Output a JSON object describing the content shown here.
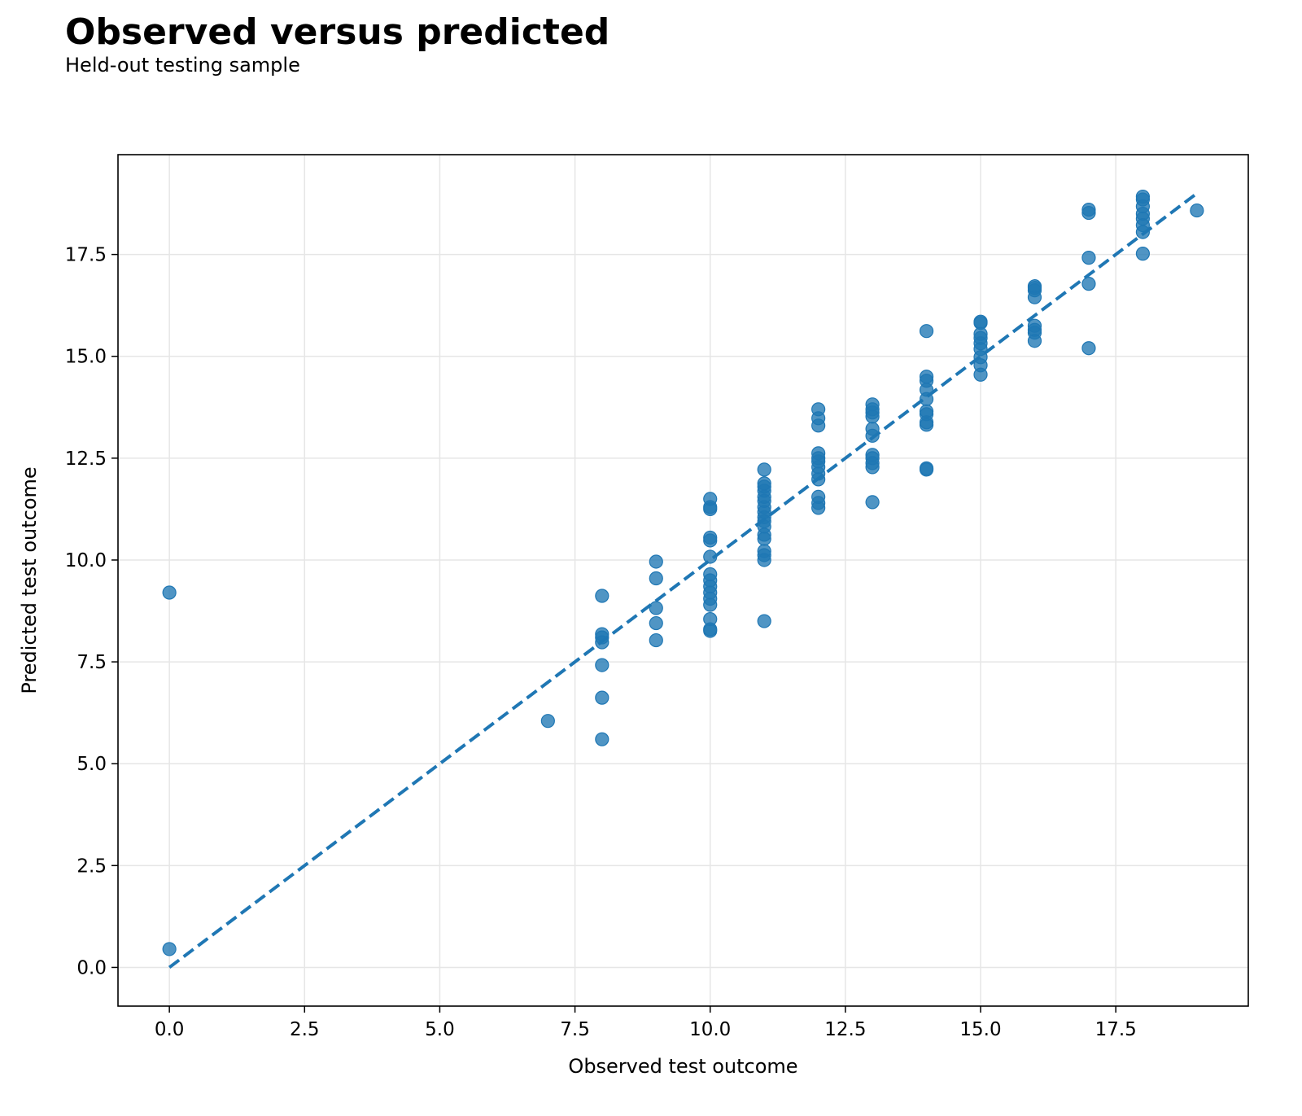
{
  "chart_data": {
    "type": "scatter",
    "title": "Observed versus predicted",
    "subtitle": "Held-out testing sample",
    "xlabel": "Observed test outcome",
    "ylabel": "Predicted test outcome",
    "xlim": [
      -0.95,
      19.95
    ],
    "ylim": [
      -0.95,
      19.95
    ],
    "xticks": [
      0.0,
      2.5,
      5.0,
      7.5,
      10.0,
      12.5,
      15.0,
      17.5
    ],
    "yticks": [
      0.0,
      2.5,
      5.0,
      7.5,
      10.0,
      12.5,
      15.0,
      17.5
    ],
    "xtick_labels": [
      "0.0",
      "2.5",
      "5.0",
      "7.5",
      "10.0",
      "12.5",
      "15.0",
      "17.5"
    ],
    "ytick_labels": [
      "0.0",
      "2.5",
      "5.0",
      "7.5",
      "10.0",
      "12.5",
      "15.0",
      "17.5"
    ],
    "grid": true,
    "point_color": "#1f77b4",
    "reference_line": {
      "x": [
        0,
        19
      ],
      "y": [
        0,
        19
      ],
      "style": "dashed",
      "color": "#1f77b4"
    },
    "points": [
      [
        0,
        9.2
      ],
      [
        0,
        0.45
      ],
      [
        7,
        6.05
      ],
      [
        8,
        9.12
      ],
      [
        8,
        8.18
      ],
      [
        8,
        8.1
      ],
      [
        8,
        7.98
      ],
      [
        8,
        7.42
      ],
      [
        8,
        6.62
      ],
      [
        8,
        5.6
      ],
      [
        9,
        9.96
      ],
      [
        9,
        9.55
      ],
      [
        9,
        8.82
      ],
      [
        9,
        8.45
      ],
      [
        9,
        8.03
      ],
      [
        10,
        11.5
      ],
      [
        10,
        11.3
      ],
      [
        10,
        11.25
      ],
      [
        10,
        10.55
      ],
      [
        10,
        10.48
      ],
      [
        10,
        10.08
      ],
      [
        10,
        9.65
      ],
      [
        10,
        9.5
      ],
      [
        10,
        9.35
      ],
      [
        10,
        9.2
      ],
      [
        10,
        9.05
      ],
      [
        10,
        8.9
      ],
      [
        10,
        8.55
      ],
      [
        10,
        8.3
      ],
      [
        10,
        8.26
      ],
      [
        11,
        12.22
      ],
      [
        11,
        11.88
      ],
      [
        11,
        11.8
      ],
      [
        11,
        11.7
      ],
      [
        11,
        11.55
      ],
      [
        11,
        11.45
      ],
      [
        11,
        11.3
      ],
      [
        11,
        11.18
      ],
      [
        11,
        11.05
      ],
      [
        11,
        10.95
      ],
      [
        11,
        10.82
      ],
      [
        11,
        10.62
      ],
      [
        11,
        10.52
      ],
      [
        11,
        10.22
      ],
      [
        11,
        10.12
      ],
      [
        11,
        10.0
      ],
      [
        11,
        8.5
      ],
      [
        12,
        13.7
      ],
      [
        12,
        13.48
      ],
      [
        12,
        13.3
      ],
      [
        12,
        12.62
      ],
      [
        12,
        12.5
      ],
      [
        12,
        12.42
      ],
      [
        12,
        12.28
      ],
      [
        12,
        12.12
      ],
      [
        12,
        11.98
      ],
      [
        12,
        11.55
      ],
      [
        12,
        11.4
      ],
      [
        12,
        11.28
      ],
      [
        13,
        13.82
      ],
      [
        13,
        13.7
      ],
      [
        13,
        13.62
      ],
      [
        13,
        13.52
      ],
      [
        13,
        13.22
      ],
      [
        13,
        13.05
      ],
      [
        13,
        12.58
      ],
      [
        13,
        12.5
      ],
      [
        13,
        12.38
      ],
      [
        13,
        12.28
      ],
      [
        13,
        11.42
      ],
      [
        14,
        15.62
      ],
      [
        14,
        14.5
      ],
      [
        14,
        14.4
      ],
      [
        14,
        14.18
      ],
      [
        14,
        13.95
      ],
      [
        14,
        13.65
      ],
      [
        14,
        13.58
      ],
      [
        14,
        13.38
      ],
      [
        14,
        13.32
      ],
      [
        14,
        12.25
      ],
      [
        14,
        12.22
      ],
      [
        15,
        15.85
      ],
      [
        15,
        15.82
      ],
      [
        15,
        15.55
      ],
      [
        15,
        15.45
      ],
      [
        15,
        15.32
      ],
      [
        15,
        15.18
      ],
      [
        15,
        14.98
      ],
      [
        15,
        14.78
      ],
      [
        15,
        14.55
      ],
      [
        16,
        16.72
      ],
      [
        16,
        16.68
      ],
      [
        16,
        16.62
      ],
      [
        16,
        16.45
      ],
      [
        16,
        15.75
      ],
      [
        16,
        15.65
      ],
      [
        16,
        15.58
      ],
      [
        16,
        15.38
      ],
      [
        17,
        18.6
      ],
      [
        17,
        18.52
      ],
      [
        17,
        17.42
      ],
      [
        17,
        16.78
      ],
      [
        17,
        15.2
      ],
      [
        18,
        18.92
      ],
      [
        18,
        18.85
      ],
      [
        18,
        18.68
      ],
      [
        18,
        18.5
      ],
      [
        18,
        18.38
      ],
      [
        18,
        18.22
      ],
      [
        18,
        18.05
      ],
      [
        18,
        17.52
      ],
      [
        19,
        18.58
      ]
    ]
  }
}
